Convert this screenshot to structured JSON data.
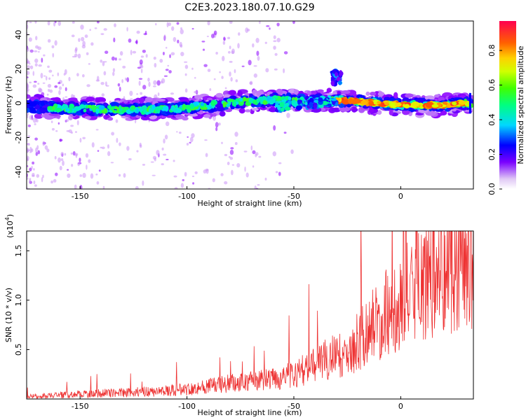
{
  "figure": {
    "title": "C2E3.2023.180.07.10.G29"
  },
  "chart_data": [
    {
      "type": "heatmap",
      "xlabel": "Height of straight line (km)",
      "ylabel": "Frequency (Hz)",
      "xlim": [
        -175,
        34
      ],
      "ylim": [
        -50,
        48
      ],
      "xticks": [
        -150,
        -100,
        -50,
        0
      ],
      "yticks": [
        -40,
        -20,
        0,
        20,
        40
      ],
      "colorbar": {
        "label": "Normalized spectral amplitude",
        "ticks": [
          0.0,
          0.2,
          0.4,
          0.6,
          0.8
        ],
        "range": [
          0,
          0.97
        ]
      },
      "ridge": {
        "x": [
          -175,
          -150,
          -125,
          -100,
          -75,
          -55,
          -45,
          -30,
          -20,
          0,
          20,
          32
        ],
        "freq": [
          -2,
          -3,
          -4,
          -3,
          1,
          2,
          1,
          2,
          1,
          -1,
          -1,
          0
        ]
      },
      "branch": {
        "x": [
          -58,
          -50,
          -40,
          -30
        ],
        "freq": [
          -3,
          -1,
          0,
          1
        ]
      },
      "blob": {
        "x": -30,
        "freq": 15
      },
      "grid": false
    },
    {
      "type": "line",
      "xlabel": "Height of straight line (km)",
      "ylabel": "SNR (10 * v/v)",
      "scale_label": "(x10",
      "scale_exp": "4",
      "scale_close": ")",
      "xlim": [
        -175,
        34
      ],
      "ylim": [
        0,
        1.7
      ],
      "xticks": [
        -150,
        -100,
        -50,
        0
      ],
      "yticks": [
        0.5,
        1.0,
        1.5
      ],
      "ytick_labels": [
        "0.5",
        "1.0",
        "1.5"
      ],
      "color": "#ee3333",
      "envelope": {
        "x": [
          -175,
          -150,
          -125,
          -110,
          -100,
          -90,
          -75,
          -60,
          -50,
          -40,
          -30,
          -25,
          -20,
          -10,
          0,
          10,
          20,
          30,
          34
        ],
        "y": [
          0.02,
          0.05,
          0.07,
          0.08,
          0.1,
          0.13,
          0.17,
          0.2,
          0.25,
          0.35,
          0.45,
          0.4,
          0.6,
          0.8,
          1.0,
          1.15,
          1.3,
          1.4,
          1.42
        ]
      },
      "grid": false
    }
  ]
}
